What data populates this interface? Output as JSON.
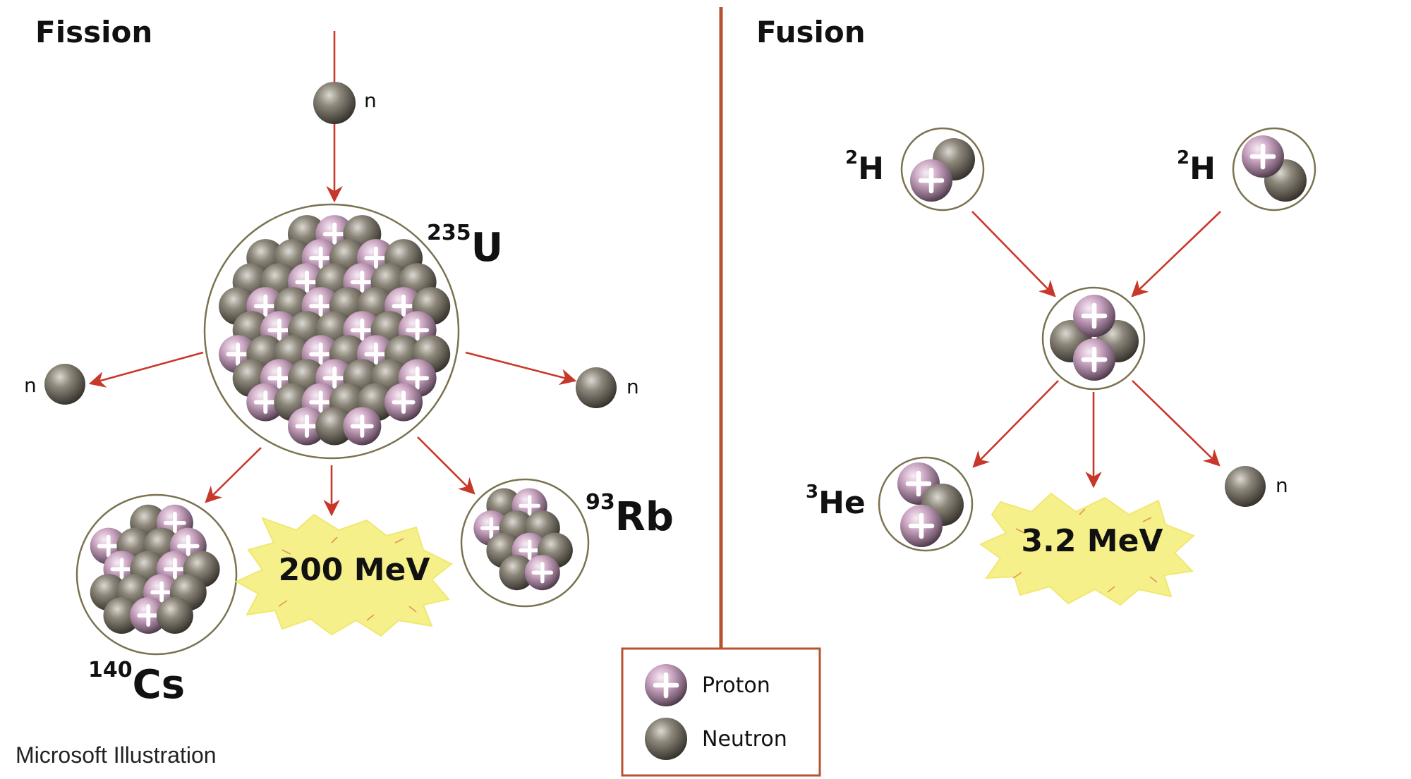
{
  "fission": {
    "title": "Fission",
    "incoming_neutron_label": "n",
    "left_neutron_label": "n",
    "right_neutron_label": "n",
    "target": {
      "mass": "235",
      "symbol": "U"
    },
    "product_a": {
      "mass": "140",
      "symbol": "Cs"
    },
    "product_b": {
      "mass": "93",
      "symbol": "Rb"
    },
    "energy": "200 MeV"
  },
  "fusion": {
    "title": "Fusion",
    "reactant_left": {
      "mass": "2",
      "symbol": "H"
    },
    "reactant_right": {
      "mass": "2",
      "symbol": "H"
    },
    "product": {
      "mass": "3",
      "symbol": "He"
    },
    "neutron_label": "n",
    "energy": "3.2 MeV"
  },
  "legend": {
    "proton_label": "Proton",
    "neutron_label": "Neutron"
  },
  "credit": "Microsoft Illustration",
  "colors": {
    "arrow": "#c8382a",
    "divider": "#b5532f",
    "legend_border": "#b5532f",
    "nucleus_outline": "#7a7350",
    "energy_burst": "#f5f08a",
    "proton": "#c7a0bc",
    "neutron": "#6f6a5f"
  }
}
